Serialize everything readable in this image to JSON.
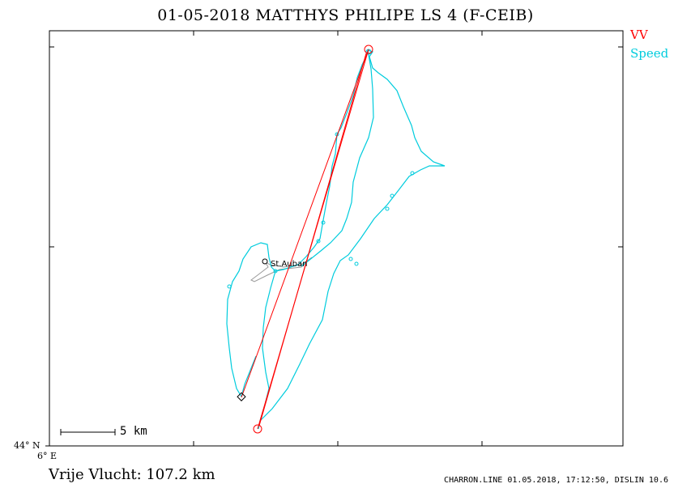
{
  "header": {
    "title": "01-05-2018    MATTHYS PHILIPE    LS 4 (F-CEIB)"
  },
  "legend": {
    "vv": "VV",
    "speed": "Speed",
    "vv_color": "#ff0000",
    "speed_color": "#00ccdd"
  },
  "axes": {
    "lat_label": "44° N",
    "lon_label": "6° E"
  },
  "scale": {
    "label": "5 km"
  },
  "map": {
    "place": "St.Auban"
  },
  "summary": {
    "distance": "Vrije Vlucht:  107.2 km"
  },
  "footer": {
    "text": "CHARRON.LINE 01.05.2018, 17:12:50, DISLIN 10.6"
  }
}
